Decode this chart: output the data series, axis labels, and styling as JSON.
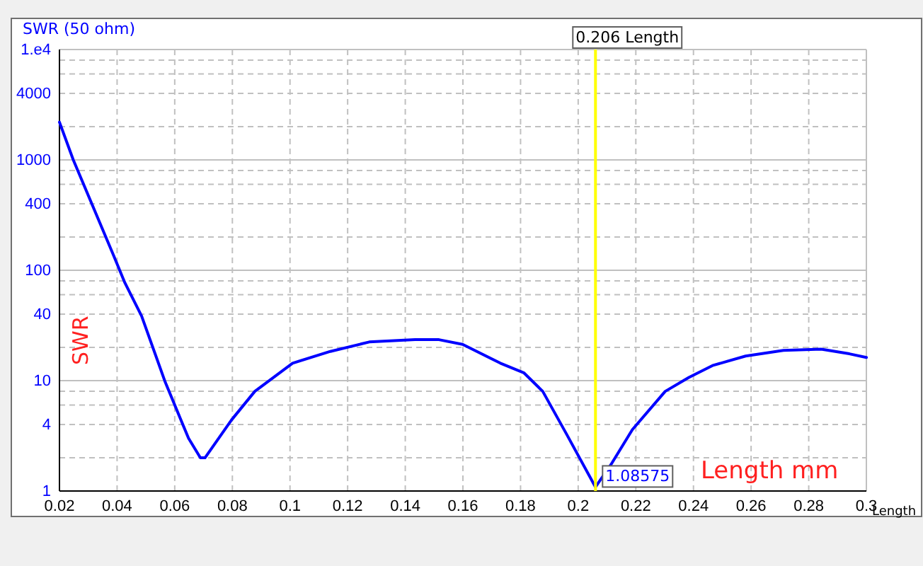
{
  "chart_data": {
    "type": "line",
    "ylabel": "SWR (50 ohm)",
    "xlabel": "Length",
    "log": "y",
    "grid": true,
    "marker": "none",
    "line_style": "solid",
    "xlim": [
      0.02,
      0.3
    ],
    "xticks": [
      0.02,
      0.04,
      0.06,
      0.08,
      0.1,
      0.12,
      0.14,
      0.16,
      0.18,
      0.2,
      0.22,
      0.24,
      0.26,
      0.28,
      0.3
    ],
    "ylim": [
      1,
      10000
    ],
    "yticks": [
      1,
      {
        "value": 2,
        "label": null
      },
      4,
      {
        "value": 6,
        "label": null
      },
      {
        "value": 8,
        "label": null
      },
      10,
      {
        "value": 20,
        "label": null
      },
      40,
      {
        "value": 60,
        "label": null
      },
      {
        "value": 80,
        "label": null
      },
      100,
      {
        "value": 200,
        "label": null
      },
      400,
      {
        "value": 600,
        "label": null
      },
      {
        "value": 800,
        "label": null
      },
      1000,
      {
        "value": 2000,
        "label": null
      },
      4000,
      {
        "value": 6000,
        "label": null
      },
      {
        "value": 8000,
        "label": null
      },
      {
        "value": 10000,
        "label": "1.e4"
      }
    ],
    "x": [
      0.02,
      0.0248,
      0.0387,
      0.0427,
      0.0485,
      0.0567,
      0.0648,
      0.0689,
      0.0705,
      0.0797,
      0.0878,
      0.1009,
      0.114,
      0.1275,
      0.1434,
      0.1517,
      0.1599,
      0.173,
      0.1811,
      0.1877,
      0.1959,
      0.206,
      0.2114,
      0.2188,
      0.2302,
      0.2384,
      0.2466,
      0.2581,
      0.2712,
      0.2843,
      0.2941,
      0.3
    ],
    "series": [
      {
        "color": "#0000ff",
        "values": [
          2200,
          1000,
          138,
          77,
          38.5,
          9.7,
          3,
          2,
          2,
          4.4,
          8,
          14.4,
          18.4,
          22.4,
          23.5,
          23.5,
          21.3,
          14.4,
          11.8,
          8,
          3.3,
          1.08575,
          1.74,
          3.6,
          8,
          10.7,
          13.7,
          16.7,
          18.8,
          19.3,
          17.5,
          16.2
        ]
      }
    ],
    "ref_lines": [
      {
        "axis": "x",
        "value": 0.206,
        "label": "0.206 Length",
        "color": "#ffff00"
      }
    ],
    "annotations": [
      {
        "text": "1.08575",
        "x": 0.206,
        "y": 1.08575
      },
      "Length mm",
      "SWR"
    ]
  }
}
